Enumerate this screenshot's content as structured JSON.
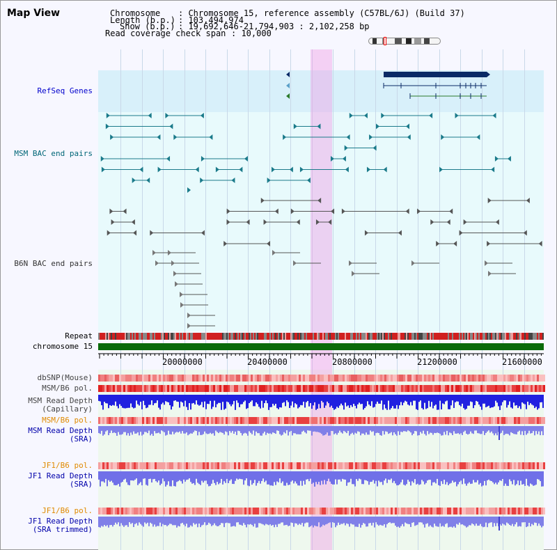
{
  "title": "Map View",
  "info": {
    "chromosome_key": "Chromosome",
    "chromosome_value": ": Chromosome 15, reference assembly (C57BL/6J) (Build 37)",
    "length_key": "Length (b.p.)",
    "length_value": ": 103,494,974",
    "show_key": "Show (b.p.)",
    "show_value": ": 19,692,646-21,794,903 : 2,102,258 bp",
    "coverage_key": "Read coverage check span",
    "coverage_value": ": 10,000"
  },
  "tracks": {
    "refseq": "RefSeq Genes",
    "msm_bac": "MSM BAC end pairs",
    "b6n_bac": "B6N BAC end pairs",
    "repeat": "Repeat",
    "chromosome": "chromosome 15",
    "dbsnp": "dbSNP(Mouse)",
    "msm_b6_pol1": "MSM/B6 pol.",
    "msm_depth_cap_1": "MSM Read Depth",
    "msm_depth_cap_2": "(Capillary)",
    "msm_b6_pol2": "MSM/B6 pol.",
    "msm_depth_sra_1": "MSM Read Depth",
    "msm_depth_sra_2": "(SRA)",
    "jf1_pol1": "JF1/B6 pol.",
    "jf1_depth_1": "JF1 Read Depth",
    "jf1_depth_2": "(SRA)",
    "jf1_pol2": "JF1/B6 pol.",
    "jf1_trim_1": "JF1 Read Depth",
    "jf1_trim_2": "(SRA trimmed)"
  },
  "axis": {
    "ticks": [
      "20000000",
      "20400000",
      "20800000",
      "21200000",
      "21600000"
    ]
  },
  "colors": {
    "refseq": "#0000cc",
    "msm": "#006677",
    "b6n": "#333333",
    "orange": "#e08a00",
    "blue_label": "#0000aa",
    "highlight": "#f0a0e6"
  }
}
